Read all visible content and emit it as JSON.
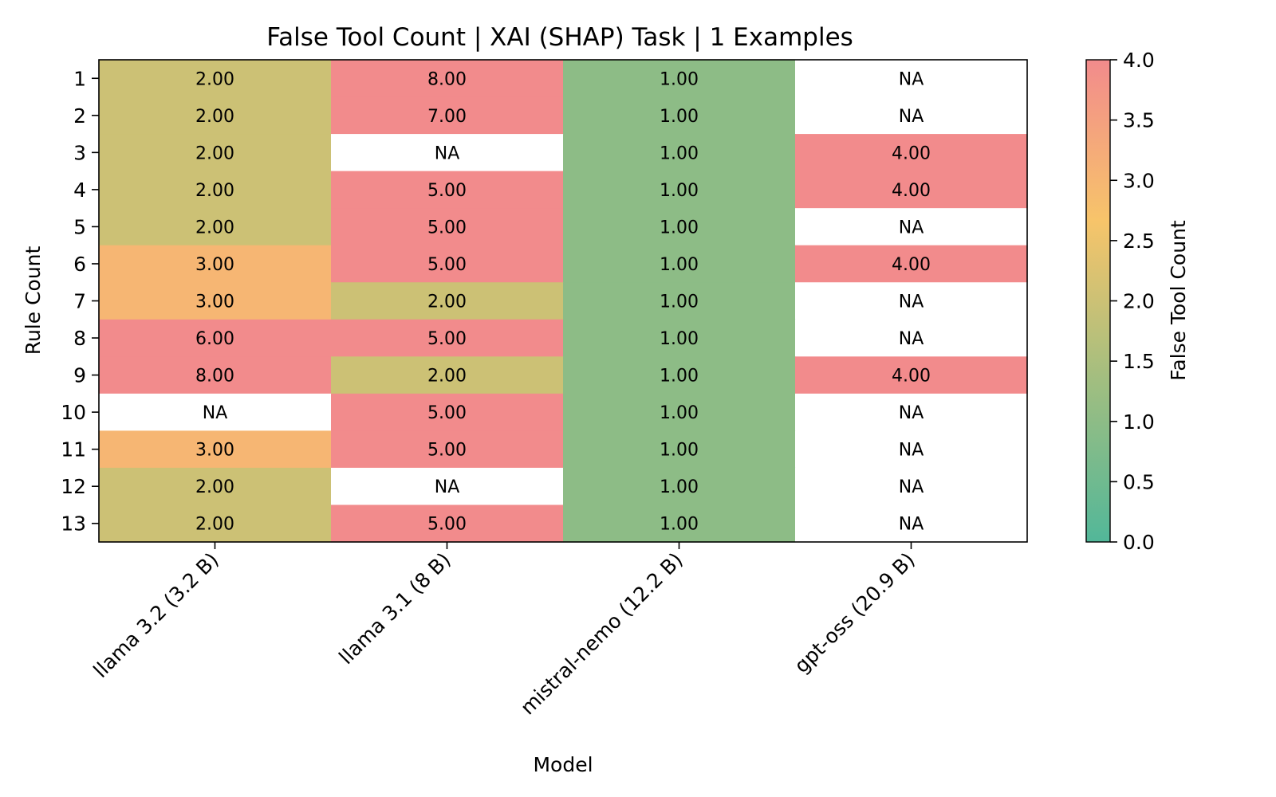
{
  "chart_data": {
    "type": "heatmap",
    "title": "False Tool Count | XAI (SHAP) Task | 1 Examples",
    "xlabel": "Model",
    "ylabel": "Rule Count",
    "colorbar_label": "False Tool Count",
    "x": [
      "llama 3.2 (3.2 B)",
      "llama 3.1 (8 B)",
      "mistral-nemo (12.2 B)",
      "gpt-oss (20.9 B)"
    ],
    "y": [
      "1",
      "2",
      "3",
      "4",
      "5",
      "6",
      "7",
      "8",
      "9",
      "10",
      "11",
      "12",
      "13"
    ],
    "values": [
      [
        2,
        8,
        1,
        null
      ],
      [
        2,
        7,
        1,
        null
      ],
      [
        2,
        null,
        1,
        4
      ],
      [
        2,
        5,
        1,
        4
      ],
      [
        2,
        5,
        1,
        null
      ],
      [
        3,
        5,
        1,
        4
      ],
      [
        3,
        2,
        1,
        null
      ],
      [
        6,
        5,
        1,
        null
      ],
      [
        8,
        2,
        1,
        4
      ],
      [
        null,
        5,
        1,
        null
      ],
      [
        3,
        5,
        1,
        null
      ],
      [
        2,
        null,
        1,
        null
      ],
      [
        2,
        5,
        1,
        null
      ]
    ],
    "missing_label": "NA",
    "value_format_decimals": 2,
    "color_range": [
      0,
      4
    ],
    "colorbar_ticks": [
      "0.0",
      "0.5",
      "1.0",
      "1.5",
      "2.0",
      "2.5",
      "3.0",
      "3.5",
      "4.0"
    ],
    "colormap": [
      "#52b799",
      "#a1be80",
      "#f7c46a",
      "#f28b8c"
    ],
    "missing_color": "#ffffff"
  }
}
